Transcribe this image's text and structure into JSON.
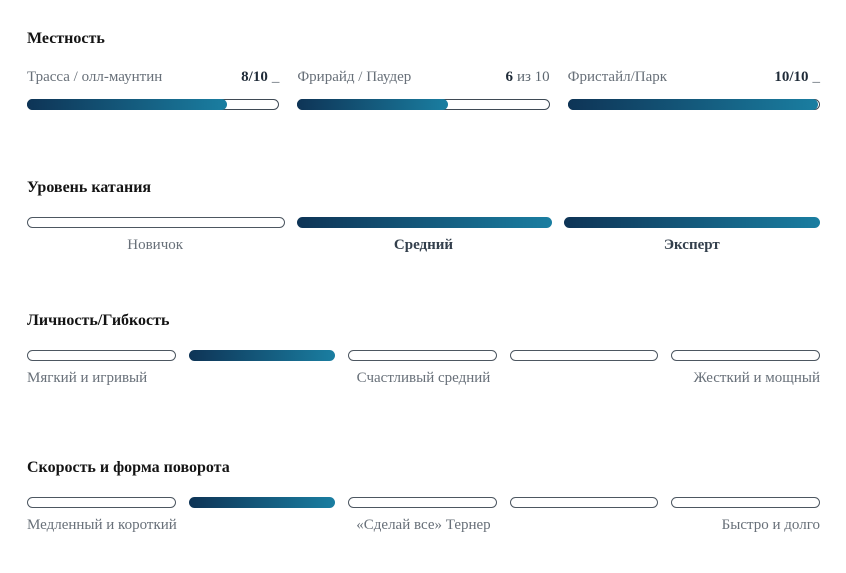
{
  "colors": {
    "fill_gradient_start": "#0e3456",
    "fill_gradient_end": "#1a7ea1",
    "track_border": "#3f4a55",
    "empty_segment_border": "#4d5761",
    "title_text": "#141414",
    "muted_label_text": "#687079",
    "value_text": "#1f2b38"
  },
  "terrain": {
    "title": "Местность",
    "bars": [
      {
        "label": "Трасса / олл-маунтин",
        "value_strong": "8/10",
        "value_rest": "_",
        "rating": 8,
        "rating_max": 10,
        "fill_style": "width:80%"
      },
      {
        "label": "Фрирайд / Паудер",
        "value_strong": "6",
        "value_rest": "из 10",
        "rating": 6,
        "rating_max": 10,
        "fill_style": "width:60%"
      },
      {
        "label": "Фристайл/Парк",
        "value_strong": "10/10",
        "value_rest": "_",
        "rating": 10,
        "rating_max": 10,
        "fill_style": "width:100%"
      }
    ]
  },
  "skill": {
    "title": "Уровень катания",
    "segments": [
      {
        "label": "Новичок",
        "state": "empty"
      },
      {
        "label": "Средний",
        "state": "filled"
      },
      {
        "label": "Эксперт",
        "state": "filled"
      }
    ]
  },
  "personality": {
    "title": "Личность/Гибкость",
    "segments": [
      {
        "state": "empty"
      },
      {
        "state": "filled"
      },
      {
        "state": "empty"
      },
      {
        "state": "empty"
      },
      {
        "state": "empty"
      }
    ],
    "labels": [
      "Мягкий и игривый",
      "Счастливый средний",
      "Жесткий и мощный"
    ]
  },
  "speed": {
    "title": "Скорость и форма поворота",
    "segments": [
      {
        "state": "empty"
      },
      {
        "state": "filled"
      },
      {
        "state": "empty"
      },
      {
        "state": "empty"
      },
      {
        "state": "empty"
      }
    ],
    "labels": [
      "Медленный и короткий",
      "«Сделай все» Тернер",
      "Быстро и долго"
    ]
  }
}
